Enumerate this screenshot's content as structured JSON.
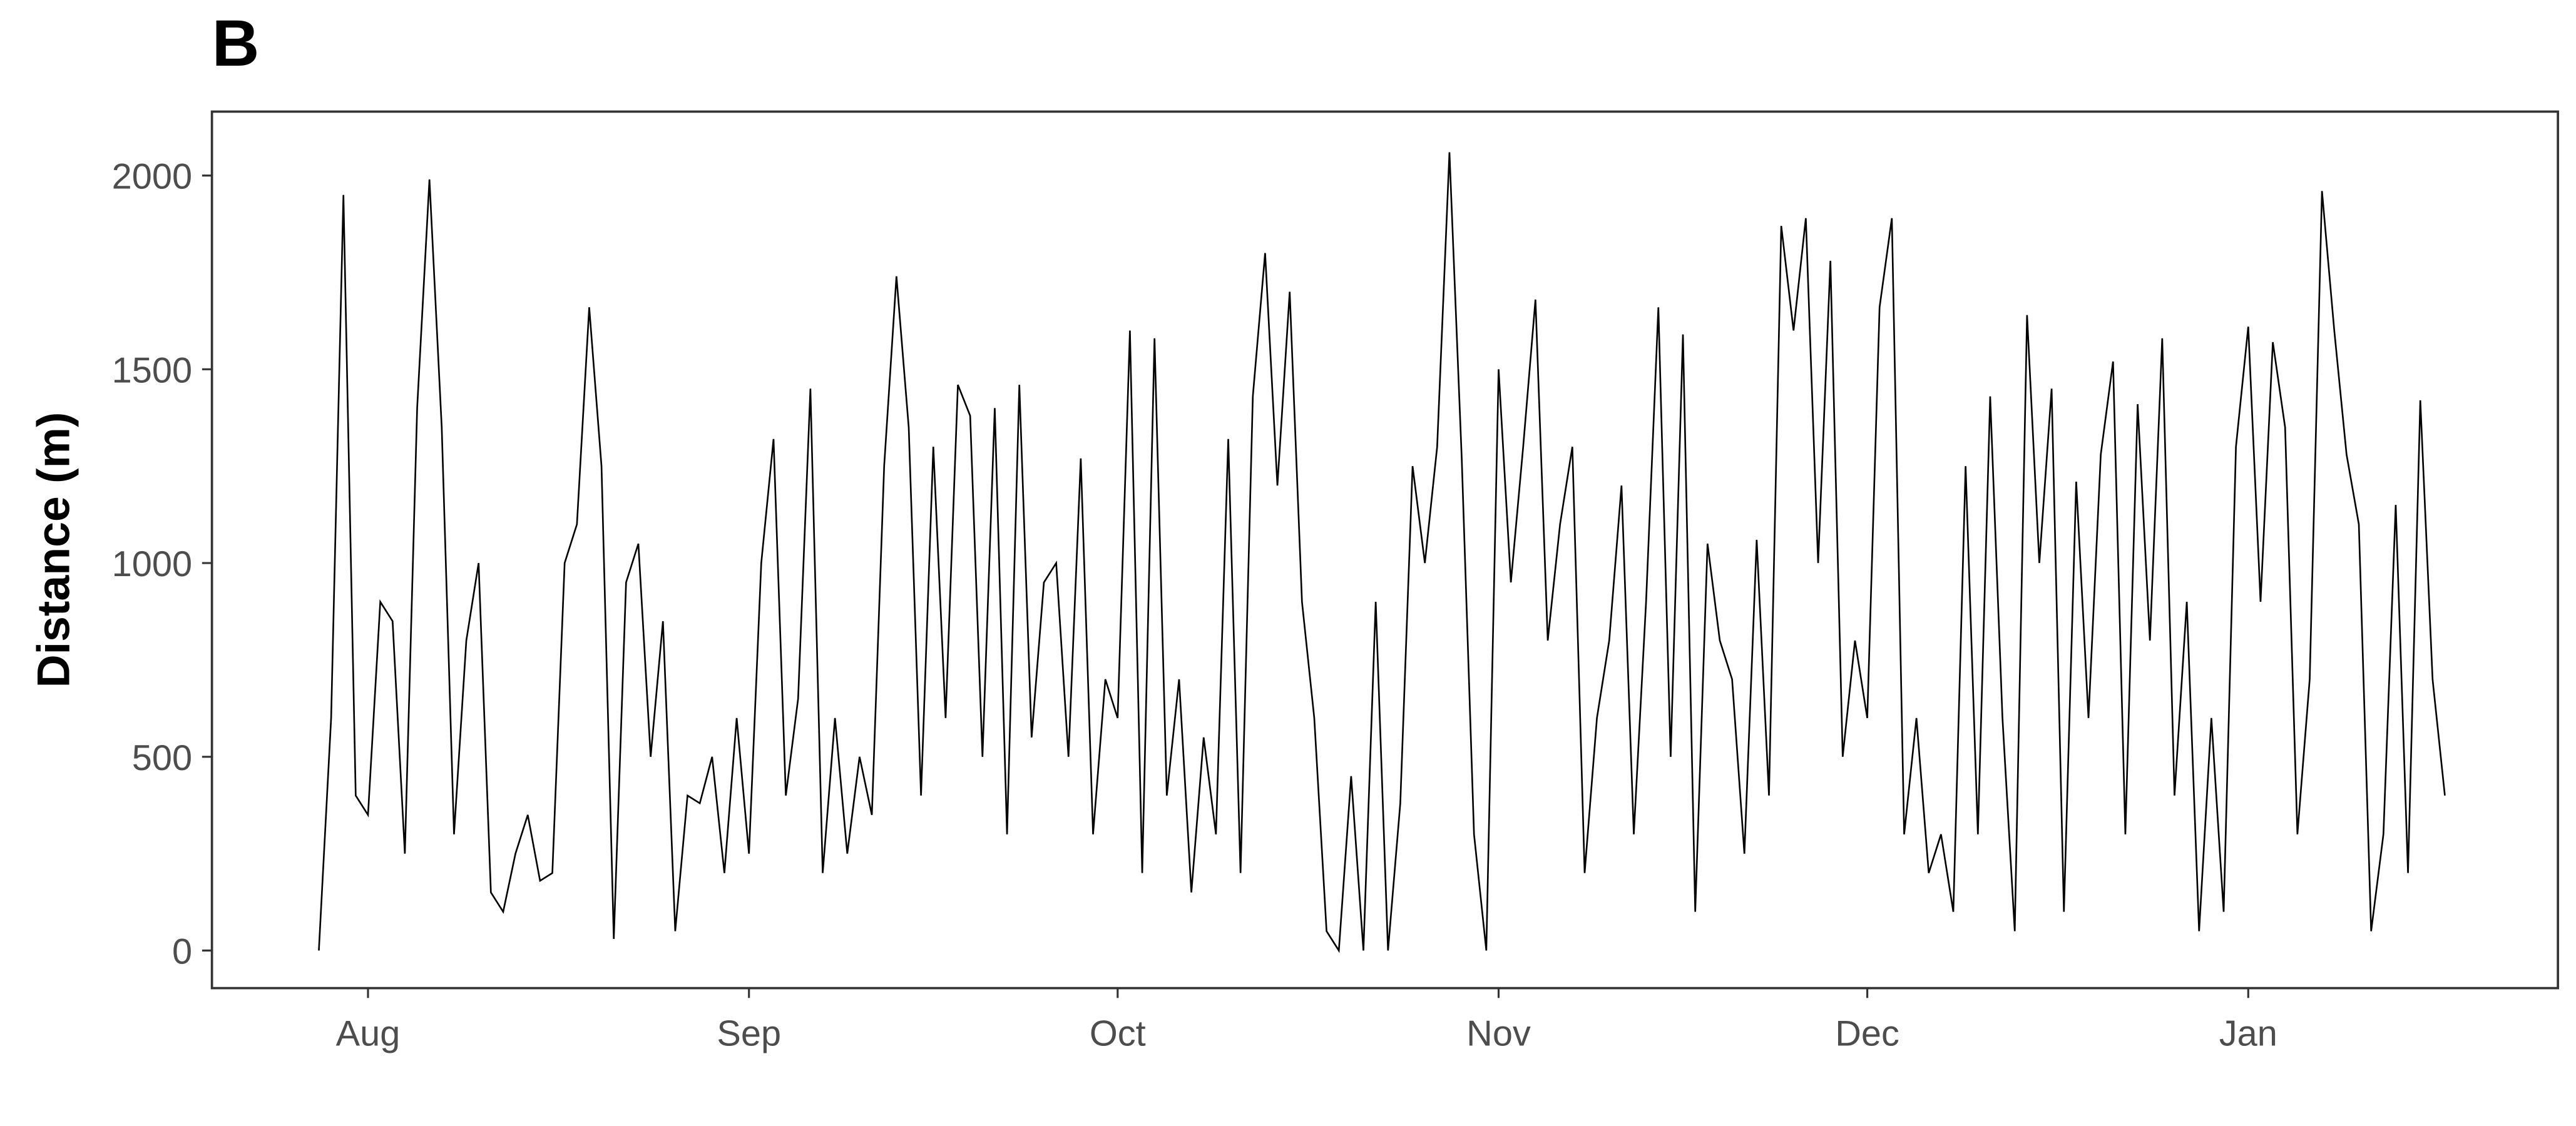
{
  "chart_data": {
    "type": "line",
    "title": "B",
    "ylabel": "Distance (m)",
    "color": "#000000",
    "x": [
      -4,
      -3,
      -2,
      -1,
      0,
      1,
      2,
      3,
      4,
      5,
      6,
      7,
      8,
      9,
      10,
      11,
      12,
      13,
      14,
      15,
      16,
      17,
      18,
      19,
      20,
      21,
      22,
      23,
      24,
      25,
      26,
      27,
      28,
      29,
      30,
      31,
      32,
      33,
      34,
      35,
      36,
      37,
      38,
      39,
      40,
      41,
      42,
      43,
      44,
      45,
      46,
      47,
      48,
      49,
      50,
      51,
      52,
      53,
      54,
      55,
      56,
      57,
      58,
      59,
      60,
      61,
      62,
      63,
      64,
      65,
      66,
      67,
      68,
      69,
      70,
      71,
      72,
      73,
      74,
      75,
      76,
      77,
      78,
      79,
      80,
      81,
      82,
      83,
      84,
      85,
      86,
      87,
      88,
      89,
      90,
      91,
      92,
      93,
      94,
      95,
      96,
      97,
      98,
      99,
      100,
      101,
      102,
      103,
      104,
      105,
      106,
      107,
      108,
      109,
      110,
      111,
      112,
      113,
      114,
      115,
      116,
      117,
      118,
      119,
      120,
      121,
      122,
      123,
      124,
      125,
      126,
      127,
      128,
      129,
      130,
      131,
      132,
      133,
      134,
      135,
      136,
      137,
      138,
      139,
      140,
      141,
      142,
      143,
      144,
      145,
      146,
      147,
      148,
      149,
      150,
      151,
      152,
      153,
      154,
      155,
      156,
      157,
      158,
      159,
      160,
      161,
      162,
      163,
      164,
      165,
      166,
      167,
      168,
      169
    ],
    "values": [
      0,
      600,
      1950,
      400,
      350,
      900,
      850,
      250,
      1400,
      1990,
      1350,
      300,
      800,
      1000,
      150,
      100,
      250,
      350,
      180,
      200,
      1000,
      1100,
      1660,
      1250,
      30,
      950,
      1050,
      500,
      850,
      50,
      400,
      380,
      500,
      200,
      600,
      250,
      1000,
      1320,
      400,
      650,
      1450,
      200,
      600,
      250,
      500,
      350,
      1250,
      1740,
      1350,
      400,
      1300,
      600,
      1460,
      1380,
      500,
      1400,
      300,
      1460,
      550,
      950,
      1000,
      500,
      1270,
      300,
      700,
      600,
      1600,
      200,
      1580,
      400,
      700,
      150,
      550,
      300,
      1320,
      200,
      1430,
      1800,
      1200,
      1700,
      900,
      600,
      50,
      0,
      450,
      0,
      900,
      0,
      380,
      1250,
      1000,
      1300,
      2060,
      1270,
      300,
      0,
      1500,
      950,
      1300,
      1680,
      800,
      1100,
      1300,
      200,
      600,
      800,
      1200,
      300,
      900,
      1660,
      500,
      1590,
      100,
      1050,
      800,
      700,
      250,
      1060,
      400,
      1870,
      1600,
      1890,
      1000,
      1780,
      500,
      800,
      600,
      1660,
      1890,
      300,
      600,
      200,
      300,
      100,
      1250,
      300,
      1430,
      600,
      50,
      1640,
      1000,
      1450,
      100,
      1210,
      600,
      1280,
      1520,
      300,
      1410,
      800,
      1580,
      400,
      900,
      50,
      600,
      100,
      1300,
      1610,
      900,
      1570,
      1350,
      300,
      700,
      1960,
      1600,
      1280,
      1100,
      50,
      300,
      1150,
      200,
      1420,
      700,
      400
    ],
    "xlim": [
      -12.7,
      178.2
    ],
    "xticks": [
      {
        "value": 0,
        "label": "Aug"
      },
      {
        "value": 31,
        "label": "Sep"
      },
      {
        "value": 61,
        "label": "Oct"
      },
      {
        "value": 92,
        "label": "Nov"
      },
      {
        "value": 122,
        "label": "Dec"
      },
      {
        "value": 153,
        "label": "Jan"
      }
    ],
    "ylim": [
      -97,
      2165
    ],
    "yticks": [
      0,
      500,
      1000,
      1500,
      2000
    ]
  }
}
